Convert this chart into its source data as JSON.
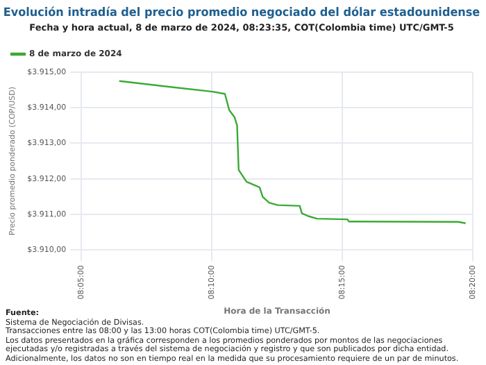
{
  "chart_data": {
    "type": "line",
    "title": "Evolución intradía del precio promedio negociado del dólar estadounidense",
    "subtitle": "Fecha y hora actual, 8 de marzo de 2024, 08:23:35, COT(Colombia time) UTC/GMT-5",
    "xlabel": "Hora de la Transacción",
    "ylabel": "Precio promedio ponderado (COP/USD)",
    "x": [
      8.1075,
      8.1672,
      8.175,
      8.1778,
      8.1812,
      8.1828,
      8.1838,
      8.1888,
      8.195,
      8.1972,
      8.1992,
      8.2033,
      8.2088,
      8.2228,
      8.2242,
      8.2283,
      8.2338,
      8.2533,
      8.2542,
      8.3242,
      8.3288
    ],
    "series": [
      {
        "name": "8 de marzo de 2024",
        "color": "#3aaa35",
        "values": [
          3914.75,
          3914.45,
          3914.39,
          3913.93,
          3913.73,
          3913.5,
          3912.25,
          3911.92,
          3911.8,
          3911.76,
          3911.49,
          3911.33,
          3911.26,
          3911.24,
          3911.03,
          3910.95,
          3910.88,
          3910.86,
          3910.8,
          3910.79,
          3910.75
        ]
      }
    ],
    "xlim": [
      8.0833,
      8.3333
    ],
    "xticks": [
      {
        "value": 8.0833,
        "label": "08:05:00"
      },
      {
        "value": 8.1667,
        "label": "08:10:00"
      },
      {
        "value": 8.25,
        "label": "08:15:00"
      },
      {
        "value": 8.3333,
        "label": "08:20:00"
      }
    ],
    "ylim": [
      3910,
      3915
    ],
    "yticks": [
      {
        "value": 3910,
        "label": "$3.910,00"
      },
      {
        "value": 3911,
        "label": "$3.911,00"
      },
      {
        "value": 3912,
        "label": "$3.912,00"
      },
      {
        "value": 3913,
        "label": "$3.913,00"
      },
      {
        "value": 3914,
        "label": "$3.914,00"
      },
      {
        "value": 3915,
        "label": "$3.915,00"
      }
    ],
    "grid": true,
    "legend": "top left",
    "marker": "none",
    "line_style": "solid",
    "annotations": [
      "Fuente:",
      "Sistema de Negociación de Divisas.",
      "Transacciones entre las 08:00 y las 13:00 horas COT(Colombia time) UTC/GMT-5.",
      "Los datos presentados en la gráfica corresponden a los promedios ponderados por montos de las negociaciones",
      "ejecutadas y/o registradas a través del sistema de negociación y registro y que son publicados por dicha entidad.",
      "Adicionalmente, los datos no son en tiempo real en la medida que su procesamiento requiere de un par de minutos."
    ]
  }
}
